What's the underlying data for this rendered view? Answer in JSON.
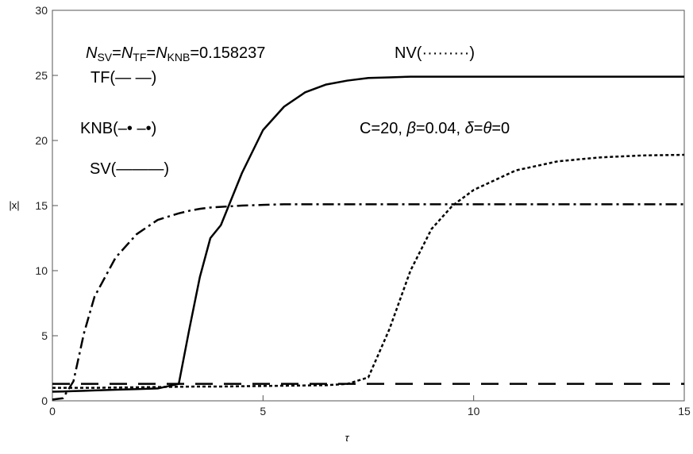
{
  "chart_data": {
    "type": "line",
    "x_label": "τ",
    "y_label": "|x|",
    "xlim": [
      0,
      15
    ],
    "ylim": [
      0,
      30
    ],
    "xticks": [
      0,
      5,
      10,
      15
    ],
    "yticks": [
      0,
      5,
      10,
      15,
      20,
      25,
      30
    ],
    "grid": false,
    "annotations": [
      {
        "parts": [
          "N",
          "SV",
          "=",
          "N",
          "TF",
          "=",
          "N",
          "KNB",
          "=0.158237"
        ]
      },
      {
        "parts": [
          "TF(— —)"
        ]
      },
      {
        "parts": [
          "KNB(–• –•)"
        ]
      },
      {
        "parts": [
          "SV(———)"
        ]
      },
      {
        "parts": [
          "NV(·········)"
        ]
      },
      {
        "parts": [
          "C=20, ",
          "β",
          "=0.04, ",
          "δ",
          "=",
          "θ",
          "=0"
        ]
      }
    ],
    "x": [
      0,
      0.25,
      0.5,
      0.75,
      1,
      1.5,
      2,
      2.5,
      3,
      3.25,
      3.5,
      3.75,
      4,
      4.5,
      5,
      5.5,
      6,
      6.5,
      7,
      7.5,
      8,
      8.5,
      9,
      9.5,
      10,
      11,
      12,
      13,
      14,
      15
    ],
    "series": [
      {
        "name": "TF",
        "color": "#000000",
        "line_style": "dashed",
        "values": [
          1.3,
          1.3,
          1.3,
          1.3,
          1.3,
          1.3,
          1.3,
          1.3,
          1.3,
          1.3,
          1.3,
          1.3,
          1.3,
          1.3,
          1.3,
          1.3,
          1.3,
          1.3,
          1.3,
          1.3,
          1.3,
          1.3,
          1.3,
          1.3,
          1.3,
          1.3,
          1.3,
          1.3,
          1.3,
          1.3
        ]
      },
      {
        "name": "KNB",
        "color": "#000000",
        "line_style": "dashdot",
        "values": [
          0.1,
          0.2,
          1.5,
          5.2,
          8,
          11,
          12.8,
          13.9,
          14.4,
          14.6,
          14.75,
          14.85,
          14.9,
          15.0,
          15.05,
          15.1,
          15.1,
          15.1,
          15.1,
          15.1,
          15.1,
          15.1,
          15.1,
          15.1,
          15.1,
          15.1,
          15.1,
          15.1,
          15.1,
          15.1
        ]
      },
      {
        "name": "SV",
        "color": "#000000",
        "line_style": "solid",
        "values": [
          0.7,
          0.72,
          0.75,
          0.77,
          0.8,
          0.85,
          0.9,
          0.95,
          1.3,
          5.5,
          9.5,
          12.5,
          13.5,
          17.5,
          20.8,
          22.6,
          23.7,
          24.3,
          24.6,
          24.8,
          24.85,
          24.9,
          24.9,
          24.9,
          24.9,
          24.9,
          24.9,
          24.9,
          24.9,
          24.9
        ]
      },
      {
        "name": "NV",
        "color": "#000000",
        "line_style": "dotted",
        "values": [
          1.0,
          1.0,
          1.0,
          1.0,
          1.0,
          1.02,
          1.04,
          1.06,
          1.08,
          1.09,
          1.1,
          1.1,
          1.1,
          1.12,
          1.14,
          1.16,
          1.18,
          1.2,
          1.3,
          1.8,
          5.5,
          10,
          13.2,
          15,
          16.2,
          17.7,
          18.4,
          18.7,
          18.85,
          18.9
        ]
      }
    ]
  }
}
